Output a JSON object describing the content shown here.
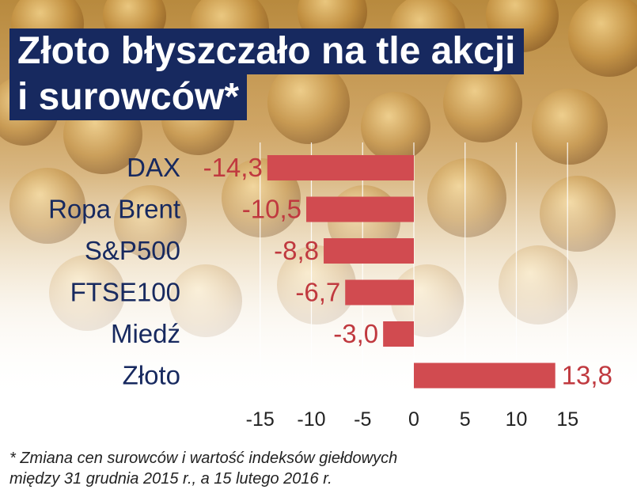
{
  "title": {
    "line1": "Złoto błyszczało na tle akcji",
    "line2": "i surowców*"
  },
  "footnote": {
    "line1": "* Zmiana cen surowców i wartość indeksów giełdowych",
    "line2": "między 31 grudnia 2015 r., a 15 lutego 2016 r."
  },
  "colors": {
    "bar": "#d14b50",
    "value_label": "#c0393f",
    "category_label": "#17295f",
    "title_bg": "#17295f"
  },
  "chart_data": {
    "type": "bar",
    "orientation": "horizontal",
    "categories": [
      "DAX",
      "Ropa Brent",
      "S&P500",
      "FTSE100",
      "Miedź",
      "Złoto"
    ],
    "values": [
      -14.3,
      -10.5,
      -8.8,
      -6.7,
      -3.0,
      13.8
    ],
    "value_labels": [
      "-14,3",
      "-10,5",
      "-8,8",
      "-6,7",
      "-3,0",
      "13,8"
    ],
    "xlim": [
      -15,
      15
    ],
    "xticks": [
      -15,
      -10,
      -5,
      0,
      5,
      10,
      15
    ],
    "xtick_labels": [
      "-15",
      "-10",
      "-5",
      "0",
      "5",
      "10",
      "15"
    ],
    "grid": "vertical",
    "legend": "none"
  }
}
